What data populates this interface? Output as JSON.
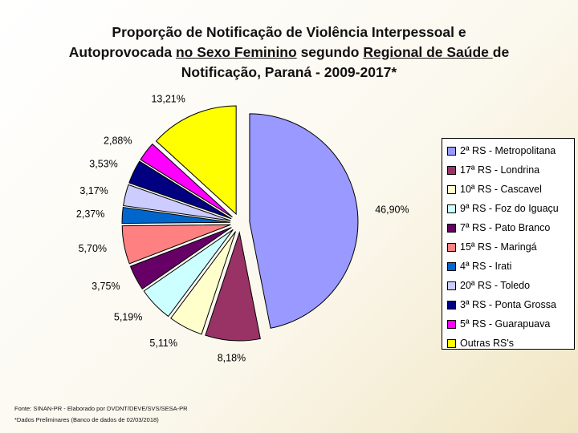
{
  "title": {
    "line1": "Proporção de Notificação de Violência Interpessoal e",
    "line2_a": "Autoprovocada ",
    "line2_u1": "no Sexo Feminino",
    "line2_b": " segundo ",
    "line2_u2": "Regional de Saúde ",
    "line2_c": "de",
    "line3": "Notificação, Paraná - 2009-2017*"
  },
  "footer": {
    "source": "Fonte: SINAN-PR - Elaborado por DVDNT/DEVE/SVS/SESA-PR",
    "note": "*Dados Preliminares (Banco de dados de 02/03/2018)"
  },
  "chart_data": {
    "type": "pie",
    "title": "Proporção de Notificação de Violência Interpessoal e Autoprovocada no Sexo Feminino segundo Regional de Saúde de Notificação, Paraná - 2009-2017*",
    "legend_position": "right",
    "slices": [
      {
        "name": "2ª RS - Metropolitana",
        "value": 46.9,
        "label": "46,90%",
        "color": "#9999ff"
      },
      {
        "name": "17ª RS - Londrina",
        "value": 8.18,
        "label": "8,18%",
        "color": "#993366"
      },
      {
        "name": "10ª RS - Cascavel",
        "value": 5.11,
        "label": "5,11%",
        "color": "#ffffcc"
      },
      {
        "name": "9ª RS - Foz do Iguaçu",
        "value": 5.19,
        "label": "5,19%",
        "color": "#ccffff"
      },
      {
        "name": "7ª RS - Pato Branco",
        "value": 3.75,
        "label": "3,75%",
        "color": "#660066"
      },
      {
        "name": "15ª RS - Maringá",
        "value": 5.7,
        "label": "5,70%",
        "color": "#ff8080"
      },
      {
        "name": "4ª RS - Irati",
        "value": 2.37,
        "label": "2,37%",
        "color": "#0066cc"
      },
      {
        "name": "20ª RS - Toledo",
        "value": 3.17,
        "label": "3,17%",
        "color": "#ccccff"
      },
      {
        "name": "3ª RS - Ponta Grossa",
        "value": 3.53,
        "label": "3,53%",
        "color": "#000080"
      },
      {
        "name": "5ª RS - Guarapuava",
        "value": 2.88,
        "label": "2,88%",
        "color": "#ff00ff"
      },
      {
        "name": "Outras RS's",
        "value": 13.21,
        "label": "13,21%",
        "color": "#ffff00"
      }
    ]
  }
}
